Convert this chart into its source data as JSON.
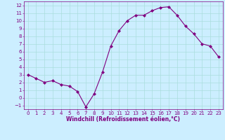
{
  "x": [
    0,
    1,
    2,
    3,
    4,
    5,
    6,
    7,
    8,
    9,
    10,
    11,
    12,
    13,
    14,
    15,
    16,
    17,
    18,
    19,
    20,
    21,
    22,
    23
  ],
  "y": [
    3.0,
    2.5,
    2.0,
    2.2,
    1.7,
    1.5,
    0.8,
    -1.2,
    0.5,
    3.3,
    6.7,
    8.7,
    10.0,
    10.7,
    10.7,
    11.3,
    11.7,
    11.8,
    10.7,
    9.3,
    8.3,
    7.0,
    6.7,
    5.3
  ],
  "line_color": "#800080",
  "marker": "D",
  "marker_size": 2.0,
  "bg_color": "#cceeff",
  "grid_color": "#aadddd",
  "xlabel": "Windchill (Refroidissement éolien,°C)",
  "xlabel_color": "#800080",
  "tick_color": "#800080",
  "ylim": [
    -1.5,
    12.5
  ],
  "xlim": [
    -0.5,
    23.5
  ],
  "yticks": [
    -1,
    0,
    1,
    2,
    3,
    4,
    5,
    6,
    7,
    8,
    9,
    10,
    11,
    12
  ],
  "xticks": [
    0,
    1,
    2,
    3,
    4,
    5,
    6,
    7,
    8,
    9,
    10,
    11,
    12,
    13,
    14,
    15,
    16,
    17,
    18,
    19,
    20,
    21,
    22,
    23
  ],
  "tick_fontsize": 5.0,
  "xlabel_fontsize": 5.5
}
